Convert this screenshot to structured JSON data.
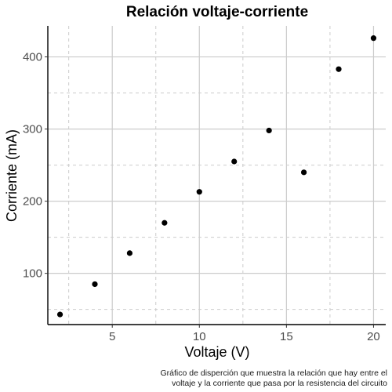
{
  "chart_data": {
    "type": "scatter",
    "title": "Relación voltaje-corriente",
    "xlabel": "Voltaje (V)",
    "ylabel": "Corriente (mA)",
    "xlim": [
      1.3,
      20.7
    ],
    "ylim": [
      29,
      443
    ],
    "xticks": [
      5,
      10,
      15,
      20
    ],
    "yticks": [
      100,
      200,
      300,
      400
    ],
    "x_minor_gridlines": [
      2.5,
      7.5,
      12.5,
      17.5
    ],
    "y_minor_gridlines": [
      50,
      150,
      250,
      350
    ],
    "grid": true,
    "legend": "none",
    "series": [
      {
        "x": [
          2,
          4,
          6,
          8,
          10,
          12,
          14,
          16,
          18,
          20
        ],
        "y": [
          43,
          85,
          128,
          170,
          213,
          255,
          298,
          240,
          383,
          426
        ]
      }
    ],
    "caption": [
      "Gráfico de disperción que muestra la relación que hay entre el",
      "voltaje y la corriente que pasa por la resistencia del circuito"
    ],
    "colors": {
      "point": "#000000",
      "major_grid": "#cccccc",
      "minor_grid": "#cccccc",
      "axis_line": "#000000",
      "tick_text": "#4d4d4d"
    }
  }
}
